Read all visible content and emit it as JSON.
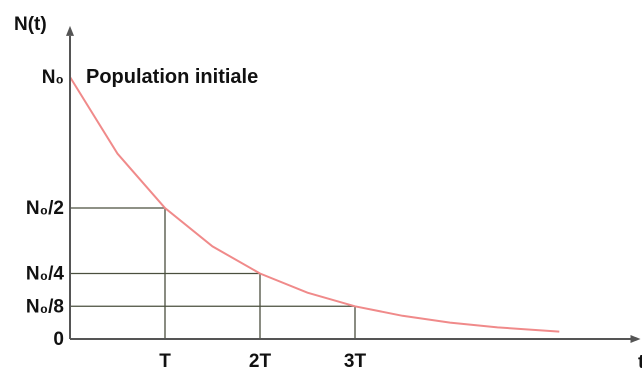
{
  "chart_data": {
    "type": "line",
    "ylabel": "N(t)",
    "xlabel": "t",
    "annotation": "Population initiale",
    "series": [
      {
        "x": [
          0,
          0.5,
          1,
          1.5,
          2,
          2.5,
          3,
          3.5,
          4,
          4.5,
          5.15
        ],
        "y": [
          1,
          0.7071,
          0.5,
          0.3536,
          0.25,
          0.1768,
          0.125,
          0.0884,
          0.0625,
          0.0442,
          0.0282
        ]
      }
    ],
    "x_ticks": [
      {
        "value": 1,
        "label": "T"
      },
      {
        "value": 2,
        "label": "2T"
      },
      {
        "value": 3,
        "label": "3T"
      }
    ],
    "y_ticks": [
      {
        "value": 0,
        "label": "0"
      },
      {
        "value": 0.125,
        "label": "N₀/8"
      },
      {
        "value": 0.25,
        "label": "N₀/4"
      },
      {
        "value": 0.5,
        "label": "N₀/2"
      },
      {
        "value": 1,
        "label": "N₀"
      }
    ],
    "guide_points": [
      {
        "x": 1,
        "y": 0.5
      },
      {
        "x": 2,
        "y": 0.25
      },
      {
        "x": 3,
        "y": 0.125
      }
    ],
    "xlim": [
      0,
      5.9
    ],
    "ylim": [
      0,
      1.05
    ],
    "grid": false,
    "colors": {
      "curve": "#f08a8a",
      "axis": "#555555",
      "guides": "#4a4f3e"
    }
  }
}
